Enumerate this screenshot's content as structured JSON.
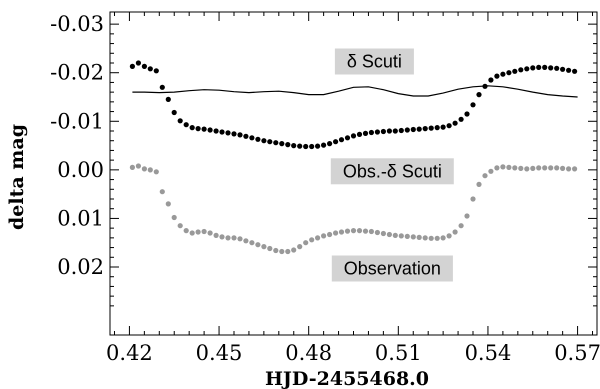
{
  "chart_data": {
    "type": "scatter",
    "xlabel": "HJD-2455468.0",
    "ylabel": "delta mag",
    "xlim": [
      0.4135,
      0.5765
    ],
    "ylim": [
      0.034,
      -0.0325
    ],
    "y_inverted": true,
    "grid": false,
    "x_ticks": [
      0.42,
      0.45,
      0.48,
      0.51,
      0.54,
      0.57
    ],
    "x_tick_labels": [
      "0.42",
      "0.45",
      "0.48",
      "0.51",
      "0.54",
      "0.57"
    ],
    "y_ticks": [
      -0.03,
      -0.02,
      -0.01,
      0.0,
      0.01,
      0.02
    ],
    "y_tick_labels": [
      "-0.03",
      "-0.02",
      "-0.01",
      "0.00",
      "0.01",
      "0.02"
    ],
    "annotations": [
      {
        "text": "δ Scuti",
        "x": 0.502,
        "y": -0.0223,
        "bg": "#d3d3d3"
      },
      {
        "text": "Obs.-δ Scuti",
        "x": 0.508,
        "y": 0.0003,
        "bg": "#d3d3d3"
      },
      {
        "text": "Observation",
        "x": 0.508,
        "y": 0.0203,
        "bg": "#d3d3d3"
      }
    ],
    "series": [
      {
        "name": "Observation",
        "type": "scatter",
        "color": "#000000",
        "x": [
          0.421,
          0.423,
          0.425,
          0.427,
          0.429,
          0.431,
          0.433,
          0.435,
          0.437,
          0.439,
          0.441,
          0.443,
          0.445,
          0.447,
          0.449,
          0.451,
          0.453,
          0.455,
          0.457,
          0.459,
          0.461,
          0.463,
          0.465,
          0.467,
          0.469,
          0.471,
          0.473,
          0.475,
          0.477,
          0.479,
          0.481,
          0.483,
          0.485,
          0.487,
          0.489,
          0.491,
          0.493,
          0.495,
          0.497,
          0.499,
          0.501,
          0.503,
          0.505,
          0.507,
          0.509,
          0.511,
          0.513,
          0.515,
          0.517,
          0.519,
          0.521,
          0.523,
          0.525,
          0.527,
          0.529,
          0.531,
          0.533,
          0.535,
          0.537,
          0.539,
          0.541,
          0.543,
          0.545,
          0.547,
          0.549,
          0.551,
          0.553,
          0.555,
          0.557,
          0.559,
          0.561,
          0.563,
          0.565,
          0.567,
          0.569
        ],
        "y": [
          -0.0213,
          -0.022,
          -0.0213,
          -0.0208,
          -0.0204,
          -0.017,
          -0.0145,
          -0.0118,
          -0.0101,
          -0.0093,
          -0.0087,
          -0.0085,
          -0.0084,
          -0.0082,
          -0.008,
          -0.0078,
          -0.0076,
          -0.0074,
          -0.0072,
          -0.0069,
          -0.0066,
          -0.0063,
          -0.006,
          -0.0058,
          -0.0056,
          -0.0054,
          -0.0052,
          -0.005,
          -0.0049,
          -0.0048,
          -0.0048,
          -0.0049,
          -0.0051,
          -0.0054,
          -0.0058,
          -0.0062,
          -0.0066,
          -0.007,
          -0.0073,
          -0.0075,
          -0.0077,
          -0.0078,
          -0.0079,
          -0.008,
          -0.008,
          -0.0081,
          -0.0082,
          -0.0083,
          -0.0084,
          -0.0085,
          -0.0086,
          -0.0087,
          -0.0088,
          -0.0091,
          -0.0096,
          -0.0104,
          -0.0115,
          -0.0134,
          -0.0155,
          -0.0172,
          -0.0185,
          -0.0193,
          -0.0197,
          -0.02,
          -0.0203,
          -0.0206,
          -0.0208,
          -0.021,
          -0.0211,
          -0.0211,
          -0.021,
          -0.0209,
          -0.0207,
          -0.0205,
          -0.0203
        ]
      },
      {
        "name": "δ Scuti",
        "type": "line",
        "color": "#000000",
        "x": [
          0.421,
          0.425,
          0.43,
          0.435,
          0.44,
          0.445,
          0.45,
          0.455,
          0.46,
          0.465,
          0.47,
          0.475,
          0.48,
          0.485,
          0.49,
          0.495,
          0.5,
          0.505,
          0.51,
          0.515,
          0.52,
          0.525,
          0.53,
          0.535,
          0.54,
          0.545,
          0.55,
          0.555,
          0.56,
          0.565,
          0.57
        ],
        "y": [
          -0.016,
          -0.016,
          -0.0159,
          -0.016,
          -0.0163,
          -0.0165,
          -0.0164,
          -0.0161,
          -0.0159,
          -0.0161,
          -0.0162,
          -0.0159,
          -0.0155,
          -0.0155,
          -0.0162,
          -0.017,
          -0.0171,
          -0.0165,
          -0.0157,
          -0.0152,
          -0.0152,
          -0.0158,
          -0.0166,
          -0.0171,
          -0.0173,
          -0.0171,
          -0.0166,
          -0.016,
          -0.0155,
          -0.0152,
          -0.015
        ]
      },
      {
        "name": "Obs.-δ Scuti",
        "type": "scatter",
        "color": "#999999",
        "x": [
          0.421,
          0.423,
          0.425,
          0.427,
          0.429,
          0.431,
          0.433,
          0.435,
          0.437,
          0.439,
          0.441,
          0.443,
          0.445,
          0.447,
          0.449,
          0.451,
          0.453,
          0.455,
          0.457,
          0.459,
          0.461,
          0.463,
          0.465,
          0.467,
          0.469,
          0.471,
          0.473,
          0.475,
          0.477,
          0.479,
          0.481,
          0.483,
          0.485,
          0.487,
          0.489,
          0.491,
          0.493,
          0.495,
          0.497,
          0.499,
          0.501,
          0.503,
          0.505,
          0.507,
          0.509,
          0.511,
          0.513,
          0.515,
          0.517,
          0.519,
          0.521,
          0.523,
          0.525,
          0.527,
          0.529,
          0.531,
          0.533,
          0.535,
          0.537,
          0.539,
          0.541,
          0.543,
          0.545,
          0.547,
          0.549,
          0.551,
          0.553,
          0.555,
          0.557,
          0.559,
          0.561,
          0.563,
          0.565,
          0.567,
          0.569
        ],
        "y": [
          -0.0005,
          -0.0008,
          -0.0002,
          0.0,
          0.0004,
          0.0045,
          0.007,
          0.0098,
          0.0115,
          0.0125,
          0.013,
          0.0128,
          0.0127,
          0.013,
          0.0135,
          0.0138,
          0.014,
          0.014,
          0.0142,
          0.0146,
          0.015,
          0.0154,
          0.0158,
          0.0162,
          0.0166,
          0.0168,
          0.0168,
          0.0165,
          0.0158,
          0.015,
          0.0144,
          0.014,
          0.0136,
          0.0133,
          0.013,
          0.0128,
          0.0126,
          0.0125,
          0.0125,
          0.0126,
          0.0127,
          0.0129,
          0.0131,
          0.0133,
          0.0135,
          0.0136,
          0.0137,
          0.0138,
          0.0139,
          0.014,
          0.0141,
          0.0141,
          0.014,
          0.0136,
          0.0128,
          0.0115,
          0.0095,
          0.006,
          0.003,
          0.0012,
          0.0003,
          -0.0004,
          -0.0006,
          -0.0005,
          -0.0004,
          -0.0003,
          -0.0002,
          -0.0003,
          -0.0004,
          -0.0004,
          -0.0004,
          -0.0004,
          -0.0003,
          -0.0002,
          -0.0002
        ]
      }
    ]
  }
}
